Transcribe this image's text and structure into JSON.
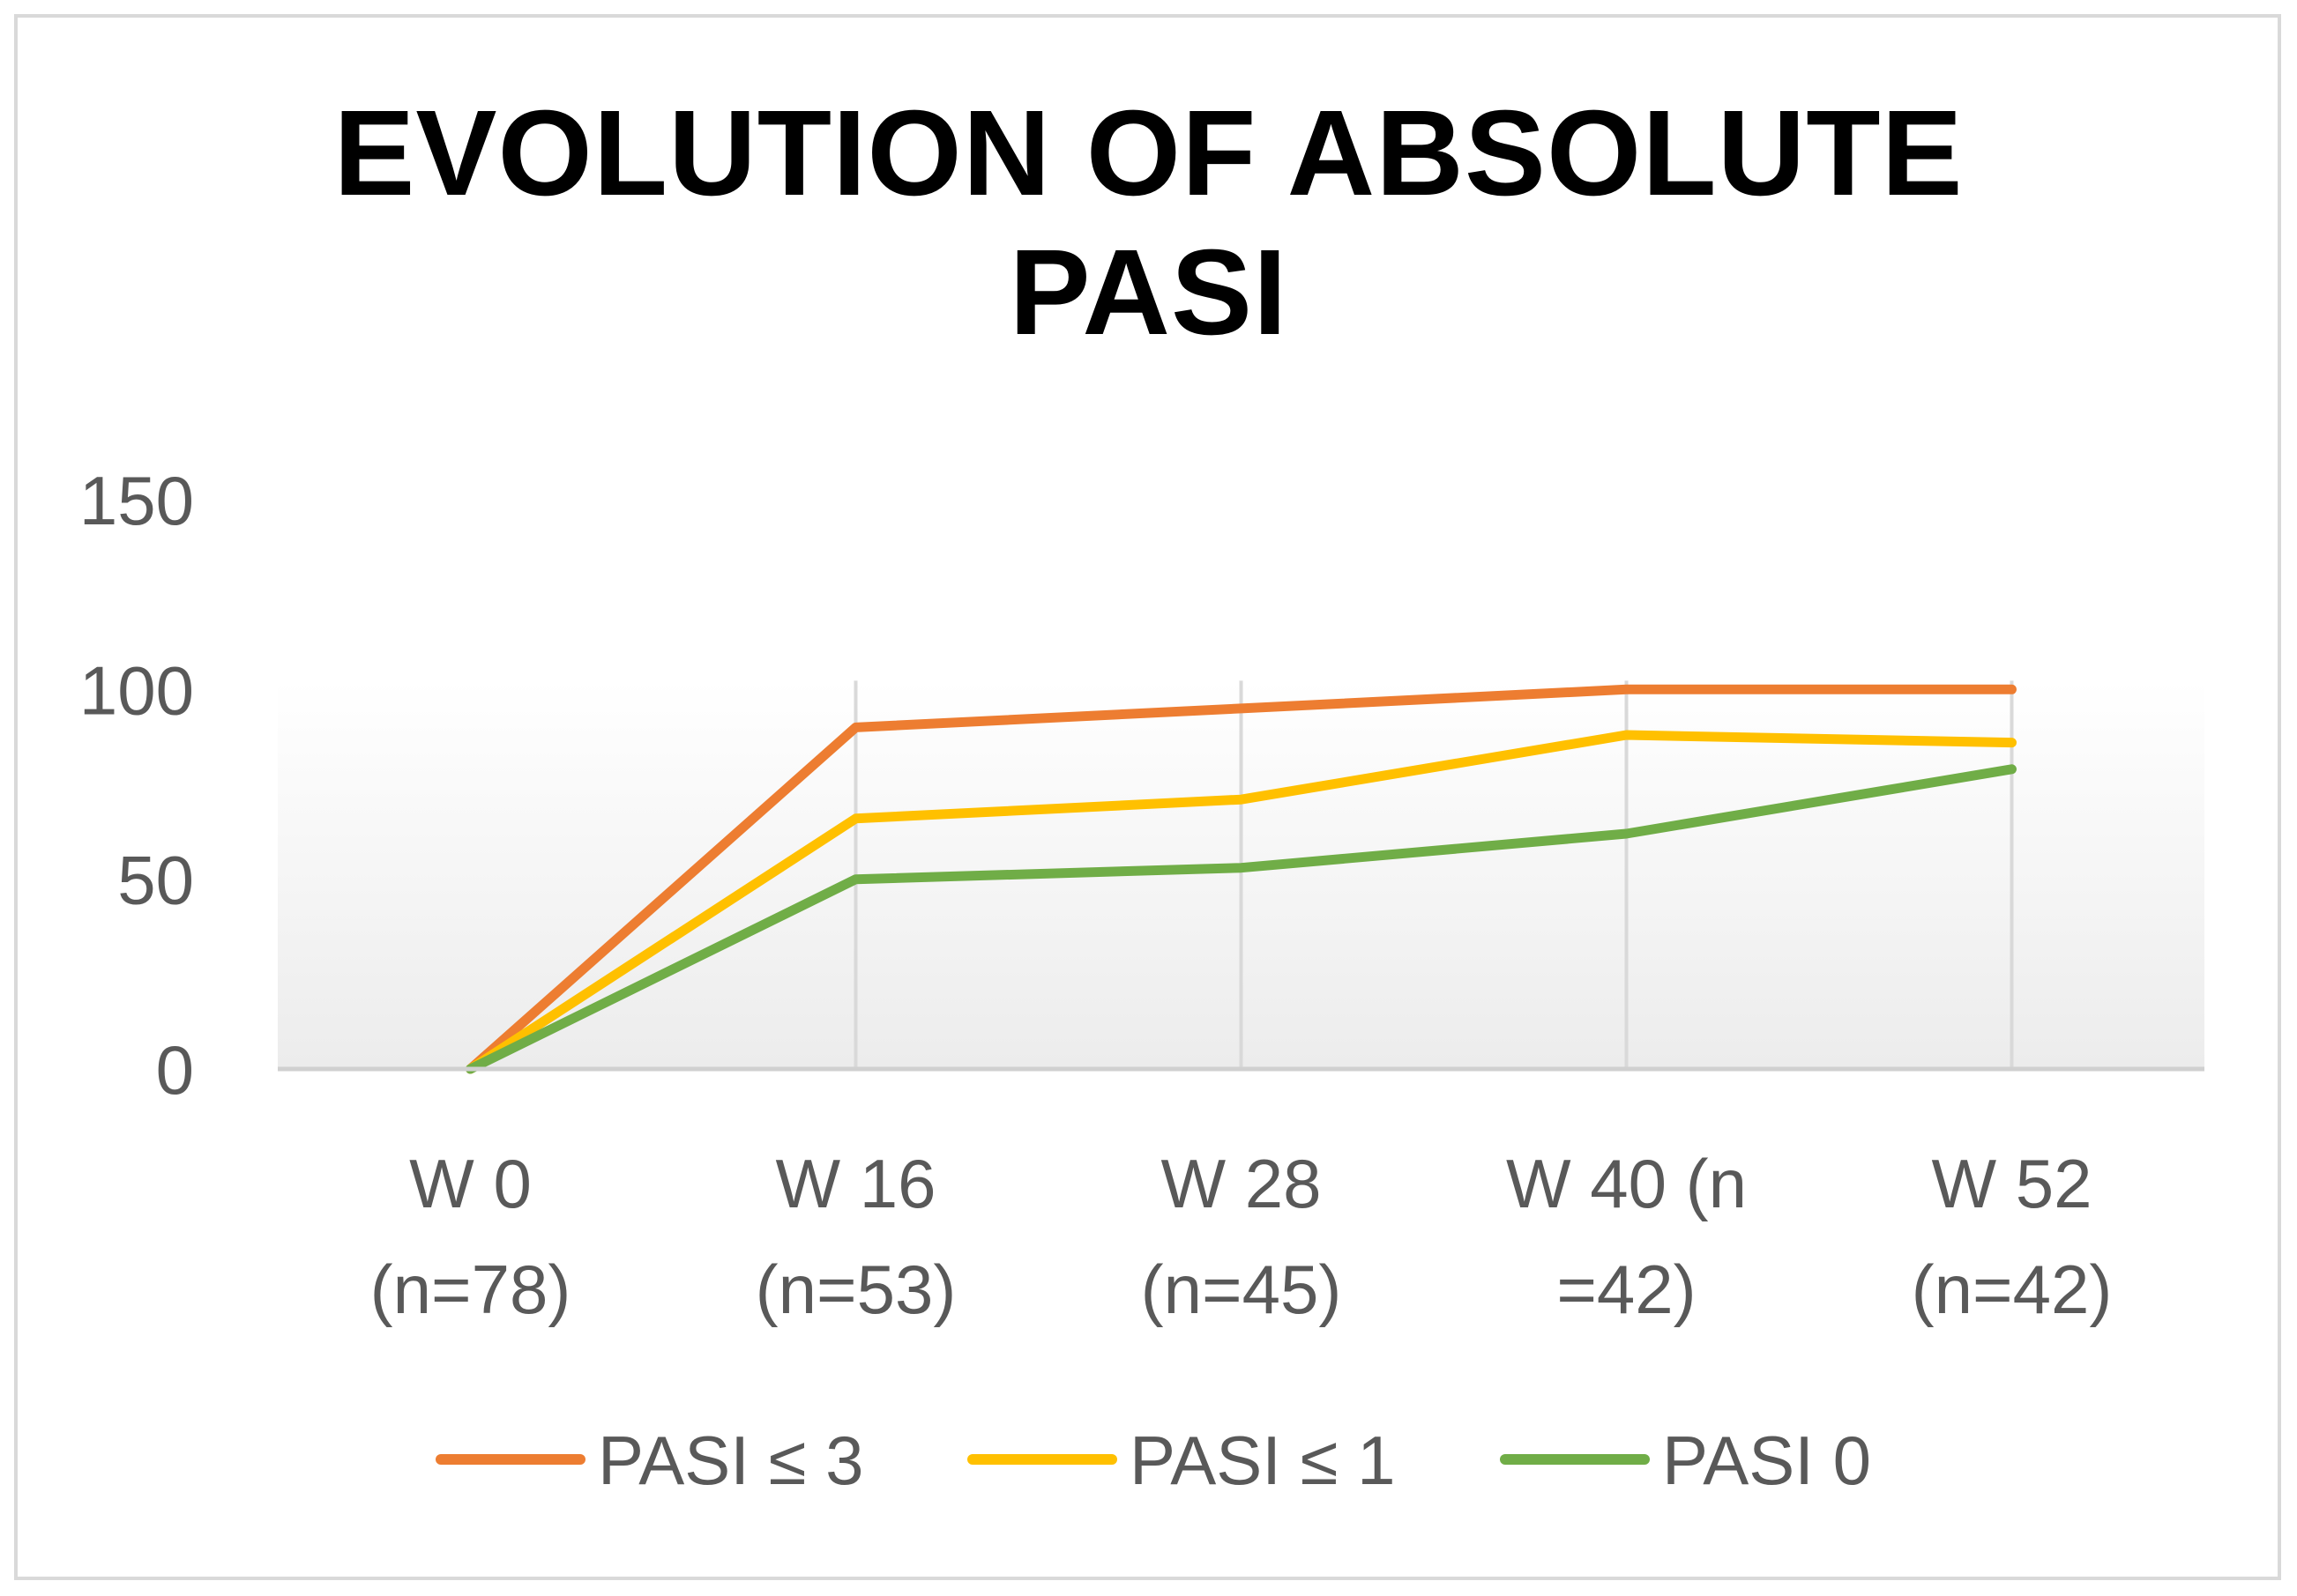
{
  "chart_data": {
    "type": "line",
    "title": "EVOLUTION OF ABSOLUTE PASI",
    "title_lines": [
      "EVOLUTION OF ABSOLUTE",
      "PASI"
    ],
    "categories": [
      [
        "W 0",
        "(n=78)"
      ],
      [
        "W 16",
        "(n=53)"
      ],
      [
        "W 28",
        "(n=45)"
      ],
      [
        "W 40 (n",
        "=42)"
      ],
      [
        "W 52",
        "(n=42)"
      ]
    ],
    "series": [
      {
        "name": "PASI ≤ 3",
        "color": "#ED7D31",
        "values": [
          0,
          90,
          95,
          100,
          100
        ]
      },
      {
        "name": "PASI ≤ 1",
        "color": "#FFC000",
        "values": [
          0,
          66,
          71,
          88,
          86
        ]
      },
      {
        "name": "PASI 0",
        "color": "#70AD47",
        "values": [
          0,
          50,
          53,
          62,
          79
        ]
      }
    ],
    "ylim": [
      0,
      150
    ],
    "yticks": [
      "0",
      "50",
      "100",
      "150"
    ],
    "xlabel": "",
    "ylabel": "",
    "grid": "vertical",
    "legend": "bottom"
  }
}
